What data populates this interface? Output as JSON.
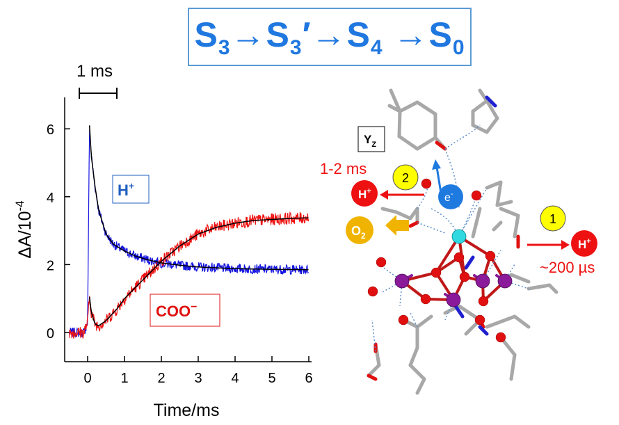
{
  "title": {
    "parts": [
      "S",
      "3",
      "→S",
      "3",
      "′→S",
      "4",
      " →S",
      "0"
    ]
  },
  "scale_bar_label": "1 ms",
  "chart_data": {
    "type": "line",
    "xlabel": "Time/ms",
    "ylabel": "ΔA/10",
    "ylabel_exponent": "-4",
    "xlim": [
      -0.6,
      6.0
    ],
    "ylim": [
      -0.8,
      7.0
    ],
    "x_ticks": [
      0,
      1,
      2,
      3,
      4,
      5,
      6
    ],
    "y_ticks": [
      0,
      2,
      4,
      6
    ],
    "grid": false,
    "series": [
      {
        "name": "H⁺",
        "color": "#1414e0",
        "x": [
          -0.5,
          -0.3,
          -0.1,
          0.0,
          0.05,
          0.1,
          0.2,
          0.3,
          0.5,
          0.7,
          1.0,
          1.3,
          1.6,
          2.0,
          2.5,
          3.0,
          4.0,
          5.0,
          6.0
        ],
        "y": [
          0.0,
          0.0,
          0.0,
          0.3,
          6.1,
          5.2,
          4.3,
          3.6,
          2.9,
          2.6,
          2.4,
          2.25,
          2.15,
          2.05,
          1.98,
          1.93,
          1.88,
          1.86,
          1.85
        ]
      },
      {
        "name": "COO⁻",
        "color": "#ee1111",
        "x": [
          -0.5,
          -0.3,
          -0.1,
          0.0,
          0.05,
          0.1,
          0.2,
          0.3,
          0.5,
          0.8,
          1.0,
          1.5,
          2.0,
          2.5,
          3.0,
          3.5,
          4.0,
          4.5,
          5.0,
          5.5,
          6.0
        ],
        "y": [
          0.0,
          0.0,
          0.0,
          0.3,
          1.05,
          0.6,
          0.25,
          0.2,
          0.35,
          0.7,
          1.0,
          1.55,
          2.1,
          2.55,
          2.9,
          3.1,
          3.22,
          3.3,
          3.33,
          3.36,
          3.38
        ]
      }
    ],
    "annotations": [
      {
        "text": "H",
        "sup": "+",
        "color": "#1f5fbf"
      },
      {
        "text": "COO",
        "sup": "−",
        "color": "#e01010"
      }
    ]
  },
  "structure": {
    "yz_label": "Y",
    "yz_sub": "Z",
    "time1": "1-2 ms",
    "time2": "~200 µs",
    "step1": "1",
    "step2": "2",
    "proton": "H",
    "proton_sup": "+",
    "electron": "e",
    "electron_sup": "-",
    "o2": "O",
    "o2_sub": "2"
  },
  "colors": {
    "title": "#1f77e0",
    "h_series": "#1414e0",
    "coo_series": "#ee1111",
    "fit": "#000000",
    "accent_red": "#ee1111",
    "accent_yellow": "#ffff00",
    "accent_orange": "#f0b400",
    "manganese": "#8a1a9a",
    "oxygen": "#e01010",
    "calcium": "#30d8e0",
    "carbon": "#a8a8a8"
  }
}
